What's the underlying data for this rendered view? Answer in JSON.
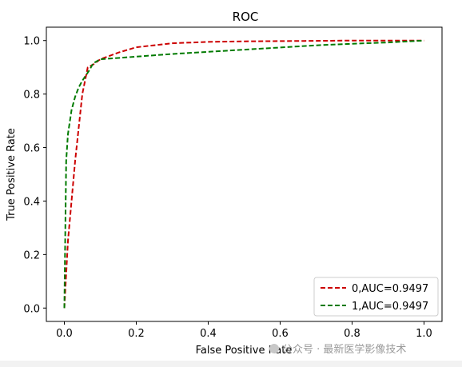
{
  "chart_data": {
    "type": "line",
    "title": "ROC",
    "xlabel": "False Positive Rate",
    "ylabel": "True Positive Rate",
    "xlim": [
      -0.05,
      1.05
    ],
    "ylim": [
      -0.05,
      1.05
    ],
    "xticks": [
      "0.0",
      "0.2",
      "0.4",
      "0.6",
      "0.8",
      "1.0"
    ],
    "yticks": [
      "0.0",
      "0.2",
      "0.4",
      "0.6",
      "0.8",
      "1.0"
    ],
    "legend_position": "lower-right",
    "series": [
      {
        "name": "0,AUC=0.9497",
        "color": "#cc0000",
        "style": "dashed",
        "x": [
          0.0,
          0.01,
          0.03,
          0.05,
          0.065,
          0.08,
          0.1,
          0.15,
          0.2,
          0.3,
          0.4,
          0.5,
          0.6,
          0.7,
          0.8,
          0.9,
          1.0
        ],
        "y": [
          0.0,
          0.25,
          0.55,
          0.8,
          0.9,
          0.91,
          0.93,
          0.955,
          0.975,
          0.99,
          0.995,
          0.997,
          0.998,
          0.999,
          1.0,
          1.0,
          1.0
        ]
      },
      {
        "name": "1,AUC=0.9497",
        "color": "#007a00",
        "style": "dashed",
        "x": [
          0.0,
          0.005,
          0.01,
          0.02,
          0.03,
          0.04,
          0.05,
          0.06,
          0.07,
          0.08,
          0.1,
          0.15,
          0.2,
          0.3,
          0.4,
          0.5,
          0.6,
          0.7,
          0.8,
          0.9,
          1.0
        ],
        "y": [
          0.0,
          0.55,
          0.65,
          0.74,
          0.79,
          0.825,
          0.85,
          0.87,
          0.89,
          0.915,
          0.93,
          0.935,
          0.94,
          0.95,
          0.958,
          0.966,
          0.974,
          0.982,
          0.988,
          0.993,
          1.0
        ]
      }
    ]
  },
  "watermark": "公众号 · 最新医学影像技术"
}
